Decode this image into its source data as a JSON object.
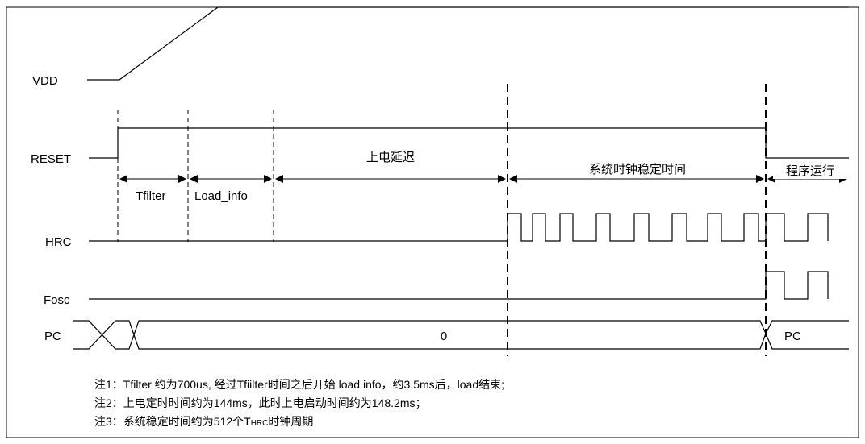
{
  "signals": {
    "vdd": "VDD",
    "reset": "RESET",
    "hrc": "HRC",
    "fosc": "Fosc",
    "pc": "PC"
  },
  "segments": {
    "tfilter": "Tfilter",
    "load_info": "Load_info",
    "power_on_delay": "上电延迟",
    "clock_stable": "系统时钟稳定时间",
    "program_run": "程序运行"
  },
  "pc_values": {
    "middle": "0",
    "after": "PC"
  },
  "notes": [
    "注1：Tfilter 约为700us, 经过Tfiilter时间之后开始 load info，约3.5ms后，load结束;",
    "注2：上电定时时间约为144ms，此时上电启动时间约为148.2ms；",
    "注3：系统稳定时间约为512个T",
    "HRC",
    "时钟周期"
  ]
}
